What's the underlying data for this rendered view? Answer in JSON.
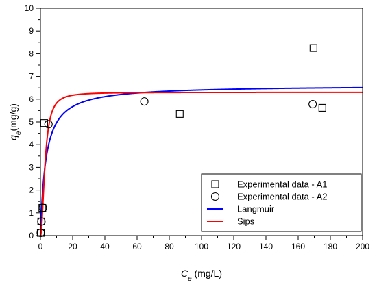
{
  "chart_data": {
    "type": "scatter",
    "xlabel": {
      "main": "C",
      "sub": "e",
      "rest": " (mg/L)"
    },
    "ylabel": {
      "main": "q",
      "sub": "e",
      "rest": "(mg/g)"
    },
    "xlim": [
      0,
      200
    ],
    "ylim": [
      0,
      10
    ],
    "x_ticks": [
      0,
      20,
      40,
      60,
      80,
      100,
      120,
      140,
      160,
      180,
      200
    ],
    "y_ticks": [
      0,
      1,
      2,
      3,
      4,
      5,
      6,
      7,
      8,
      9,
      10
    ],
    "grid": false,
    "legend_position": "bottom-right",
    "series": [
      {
        "name": "Experimental data - A1",
        "kind": "markers",
        "marker": "square",
        "color": "#000000",
        "points": [
          [
            0.2,
            0.12
          ],
          [
            0.5,
            0.62
          ],
          [
            1.2,
            1.22
          ],
          [
            2.3,
            4.95
          ],
          [
            86.5,
            5.35
          ],
          [
            169.5,
            8.25
          ],
          [
            175.0,
            5.62
          ]
        ]
      },
      {
        "name": "Experimental data - A2",
        "kind": "markers",
        "marker": "circle",
        "color": "#000000",
        "points": [
          [
            0.2,
            0.12
          ],
          [
            0.6,
            0.62
          ],
          [
            1.5,
            1.22
          ],
          [
            5.0,
            4.9
          ],
          [
            64.5,
            5.9
          ],
          [
            169.0,
            5.78
          ]
        ]
      },
      {
        "name": "Langmuir",
        "kind": "line",
        "color": "#0000ff",
        "model": "langmuir",
        "params": {
          "qmax": 6.62,
          "K": 0.3
        }
      },
      {
        "name": "Sips",
        "kind": "line",
        "color": "#ff0000",
        "model": "sips",
        "params": {
          "qmax": 6.3,
          "K": 0.35,
          "n": 2.0
        }
      }
    ]
  }
}
